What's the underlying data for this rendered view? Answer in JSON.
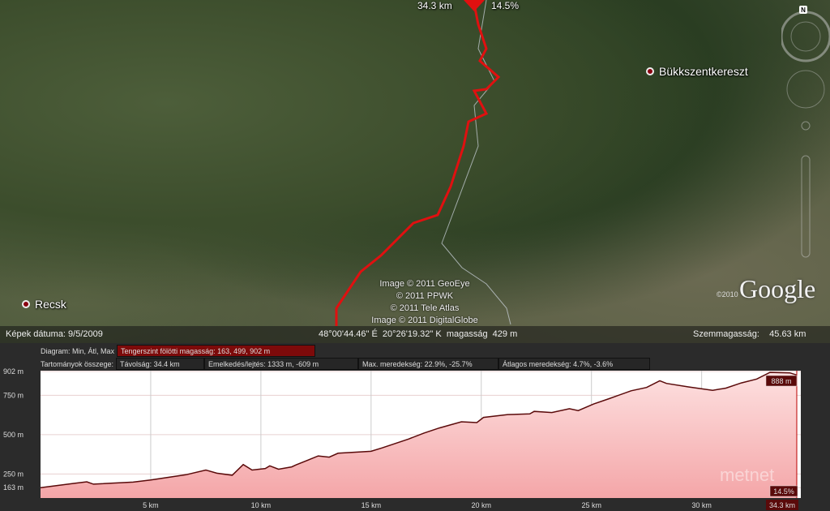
{
  "map": {
    "top_cursor": {
      "distance": "34.3 km",
      "grade": "14.5%"
    },
    "places": [
      {
        "name": "Bükkszentkereszt"
      },
      {
        "name": "Recsk"
      }
    ],
    "copyright": [
      "Image © 2011 GeoEye",
      "© 2011 PPWK",
      "© 2011 Tele Atlas",
      "Image © 2011 DigitalGlobe"
    ],
    "logo": "Google",
    "logo_year": "©2010",
    "compass_label": "N",
    "route_color": "#e01010"
  },
  "status": {
    "image_date": "Képek dátuma: 9/5/2009",
    "coords": "48°00'44.46\" É  20°26'19.32\" K  magasság  429 m",
    "eye_alt": "Szemmagasság:    45.63 km"
  },
  "panel": {
    "diagram_label": "Diagram: Min, Átl, Max",
    "elevation_box": "Tengerszint fölötti magasság: 163, 499, 902 m",
    "summary_label": "Tartományok összege:",
    "distance": "Távolság: 34.4 km",
    "gain_loss": "Emelkedés/lejtés: 1333 m, -609 m",
    "max_slope": "Max. meredekség: 22.9%, -25.7%",
    "avg_slope": "Átlagos meredekség: 4.7%, -3.6%",
    "cursor_elev": "888 m",
    "cursor_grade": "14.5%",
    "cursor_dist": "34.3 km",
    "watermark": "metnet"
  },
  "chart_data": {
    "type": "area",
    "xlim": [
      0,
      34.5
    ],
    "ylim": [
      97,
      907
    ],
    "y_ticks": [
      {
        "v": 902,
        "label": "902 m"
      },
      {
        "v": 750,
        "label": "750 m"
      },
      {
        "v": 500,
        "label": "500 m"
      },
      {
        "v": 250,
        "label": "250 m"
      },
      {
        "v": 163,
        "label": "163 m"
      }
    ],
    "x_ticks": [
      {
        "v": 5,
        "label": "5 km"
      },
      {
        "v": 10,
        "label": "10 km"
      },
      {
        "v": 15,
        "label": "15 km"
      },
      {
        "v": 20,
        "label": "20 km"
      },
      {
        "v": 25,
        "label": "25 km"
      },
      {
        "v": 30,
        "label": "30 km"
      }
    ],
    "grid": true,
    "fill_color": "#f5a8a8",
    "line_color": "#5a0a0a",
    "x": [
      0,
      1.5,
      2.1,
      2.4,
      4.2,
      5,
      6.6,
      7.5,
      8,
      8.7,
      9.2,
      9.6,
      10.2,
      10.4,
      10.8,
      11.4,
      11.6,
      12.6,
      13.1,
      13.5,
      15,
      15.5,
      16.7,
      17.4,
      18.1,
      19.1,
      19.8,
      20.1,
      21.2,
      22.2,
      22.4,
      23.2,
      24,
      24.4,
      25.1,
      25.8,
      26.8,
      27.5,
      28.1,
      28.4,
      29.4,
      30.5,
      31.1,
      31.8,
      32.5,
      33.1,
      34,
      34.3
    ],
    "y": [
      163,
      190,
      200,
      185,
      198,
      212,
      245,
      275,
      255,
      242,
      310,
      275,
      285,
      302,
      280,
      295,
      308,
      365,
      357,
      382,
      394,
      416,
      472,
      510,
      543,
      582,
      577,
      610,
      628,
      632,
      648,
      641,
      665,
      653,
      695,
      729,
      779,
      800,
      843,
      826,
      804,
      782,
      796,
      829,
      854,
      896,
      893,
      880
    ]
  }
}
